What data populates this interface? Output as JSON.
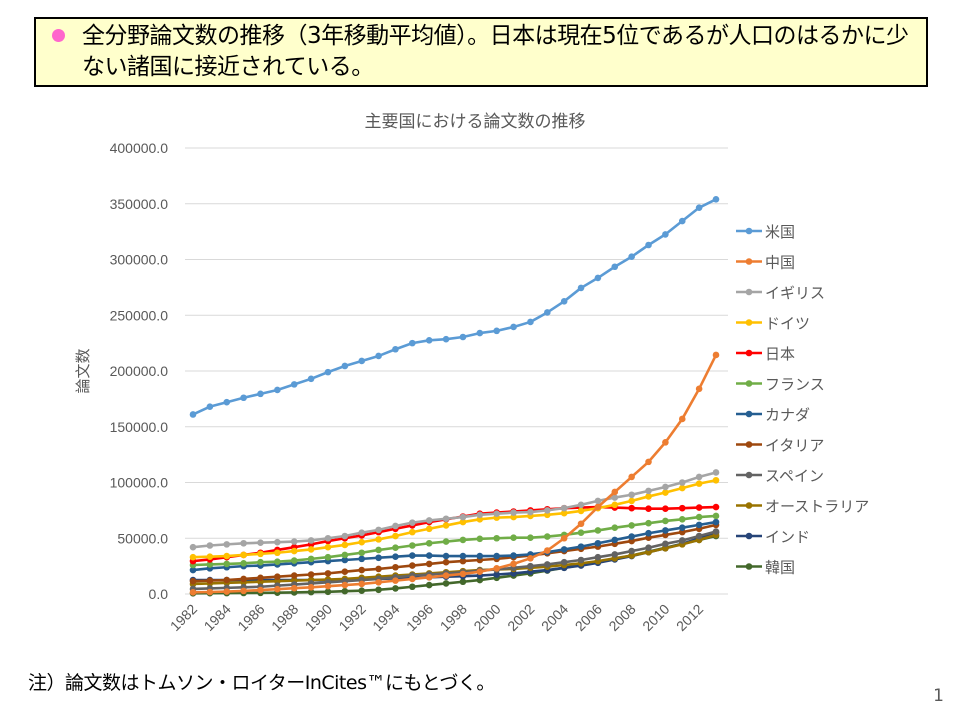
{
  "headline": {
    "bullet_color": "#ff66cc",
    "text": "全分野論文数の推移（3年移動平均値）。日本は現在5位であるが人口のはるかに少ない諸国に接近されている。"
  },
  "note": "注）論文数はトムソン・ロイターInCites™にもとづく。",
  "page_number": "1",
  "chart_data": {
    "type": "line",
    "title": "主要国における論文数の推移",
    "xlabel": "",
    "ylabel": "論文数",
    "ylim": [
      0,
      400000
    ],
    "yticks": [
      "0.0",
      "50000.0",
      "100000.0",
      "150000.0",
      "200000.0",
      "250000.0",
      "300000.0",
      "350000.0",
      "400000.0"
    ],
    "ytick_values": [
      0,
      50000,
      100000,
      150000,
      200000,
      250000,
      300000,
      350000,
      400000
    ],
    "x": [
      1982,
      1983,
      1984,
      1985,
      1986,
      1987,
      1988,
      1989,
      1990,
      1991,
      1992,
      1993,
      1994,
      1995,
      1996,
      1997,
      1998,
      1999,
      2000,
      2001,
      2002,
      2003,
      2004,
      2005,
      2006,
      2007,
      2008,
      2009,
      2010,
      2011,
      2012,
      2013
    ],
    "xtick_labels": [
      "1982",
      "1984",
      "1986",
      "1988",
      "1990",
      "1992",
      "1994",
      "1996",
      "1998",
      "2000",
      "2002",
      "2004",
      "2006",
      "2008",
      "2010",
      "2012"
    ],
    "grid": true,
    "legend_position": "right",
    "series": [
      {
        "name": "米国",
        "color": "#5b9bd5",
        "values": [
          161000,
          168000,
          172000,
          176000,
          179500,
          183000,
          188000,
          193000,
          199000,
          204500,
          209000,
          213500,
          219500,
          225000,
          227500,
          228500,
          230500,
          234000,
          236000,
          239500,
          244000,
          252500,
          262500,
          274500,
          283500,
          293500,
          302500,
          313000,
          322500,
          334500,
          346500,
          354000
        ]
      },
      {
        "name": "中国",
        "color": "#ed7d31",
        "values": [
          1500,
          1800,
          2200,
          2800,
          3500,
          4300,
          5200,
          6000,
          7000,
          8000,
          9000,
          10500,
          12000,
          13500,
          15000,
          16500,
          18000,
          20000,
          23000,
          27000,
          32000,
          39000,
          50000,
          63000,
          78000,
          91500,
          105000,
          118500,
          136000,
          157000,
          184000,
          214400
        ]
      },
      {
        "name": "イギリス",
        "color": "#a5a5a5",
        "values": [
          42000,
          43500,
          44500,
          45500,
          46000,
          46500,
          47000,
          48000,
          50000,
          52000,
          55000,
          57500,
          61000,
          64000,
          66000,
          67500,
          69000,
          71000,
          72000,
          73000,
          73500,
          75000,
          77000,
          80000,
          83500,
          86500,
          89000,
          92500,
          96000,
          100000,
          105000,
          109000
        ]
      },
      {
        "name": "ドイツ",
        "color": "#ffc000",
        "values": [
          33000,
          33500,
          34000,
          35000,
          36000,
          37000,
          38500,
          40000,
          42000,
          44000,
          46500,
          49000,
          52000,
          55500,
          58500,
          61500,
          64500,
          67000,
          68500,
          69000,
          70000,
          71000,
          72500,
          74500,
          77000,
          80000,
          83500,
          87500,
          91000,
          95000,
          99000,
          102000
        ]
      },
      {
        "name": "日本",
        "color": "#ff0000",
        "values": [
          29500,
          31000,
          33000,
          35000,
          37000,
          39500,
          42000,
          44500,
          47500,
          50000,
          52500,
          55500,
          58500,
          61500,
          64500,
          67000,
          69500,
          72000,
          73000,
          74000,
          75000,
          76000,
          77000,
          77500,
          78000,
          77500,
          77000,
          76500,
          76500,
          77000,
          77500,
          78000
        ]
      },
      {
        "name": "フランス",
        "color": "#70ad47",
        "values": [
          26000,
          26500,
          27000,
          27500,
          28500,
          29000,
          30000,
          31500,
          33000,
          35000,
          37000,
          39500,
          41500,
          43500,
          45500,
          47000,
          48500,
          49500,
          50000,
          50500,
          50500,
          51500,
          53000,
          55000,
          57000,
          59500,
          61500,
          63500,
          65500,
          67000,
          69000,
          70000
        ]
      },
      {
        "name": "カナダ",
        "color": "#255e91",
        "values": [
          21500,
          23000,
          24000,
          25000,
          25500,
          26500,
          27500,
          28500,
          29500,
          30500,
          31500,
          32500,
          33500,
          34500,
          34500,
          34000,
          34000,
          34000,
          34000,
          34500,
          35500,
          37500,
          40000,
          42500,
          45500,
          48500,
          51500,
          54500,
          57000,
          59500,
          62000,
          64500
        ]
      },
      {
        "name": "イタリア",
        "color": "#9e480e",
        "values": [
          11500,
          12000,
          12500,
          13500,
          14500,
          15500,
          16500,
          17500,
          18500,
          20000,
          21500,
          22500,
          24000,
          25500,
          27000,
          28500,
          29500,
          30500,
          31500,
          33000,
          34500,
          36500,
          38500,
          40500,
          42500,
          45000,
          47500,
          50500,
          53000,
          55500,
          58500,
          62000
        ]
      },
      {
        "name": "スペイン",
        "color": "#636363",
        "values": [
          4500,
          5000,
          5500,
          6000,
          6500,
          7500,
          8500,
          9500,
          10500,
          11500,
          12500,
          13500,
          15000,
          16500,
          17500,
          18500,
          19500,
          21000,
          22000,
          23500,
          25000,
          26500,
          28500,
          30500,
          33000,
          35500,
          38500,
          41500,
          45000,
          48000,
          52000,
          56000
        ]
      },
      {
        "name": "オーストラリア",
        "color": "#997300",
        "values": [
          9000,
          9500,
          10000,
          10500,
          11000,
          11500,
          12000,
          12500,
          13000,
          13500,
          14500,
          15500,
          16500,
          17500,
          18500,
          19500,
          20500,
          21500,
          22000,
          22500,
          23500,
          24500,
          26000,
          27500,
          29500,
          32000,
          34500,
          37500,
          41000,
          44500,
          48500,
          53000
        ]
      },
      {
        "name": "インド",
        "color": "#264478",
        "values": [
          12500,
          12500,
          12500,
          12500,
          12500,
          12500,
          12500,
          12500,
          12500,
          12500,
          13000,
          13500,
          14000,
          14500,
          15000,
          15500,
          16000,
          16500,
          17500,
          18500,
          20000,
          21500,
          23500,
          25500,
          28000,
          31000,
          34000,
          37500,
          41000,
          45000,
          50000,
          55000
        ]
      },
      {
        "name": "韓国",
        "color": "#43682b",
        "values": [
          600,
          700,
          800,
          900,
          1000,
          1200,
          1400,
          1700,
          2000,
          2500,
          3000,
          3800,
          5000,
          6500,
          8000,
          9500,
          11000,
          12500,
          14500,
          16500,
          18500,
          21000,
          23500,
          26000,
          28500,
          31500,
          34500,
          38000,
          41500,
          45000,
          48500,
          52000
        ]
      }
    ]
  }
}
